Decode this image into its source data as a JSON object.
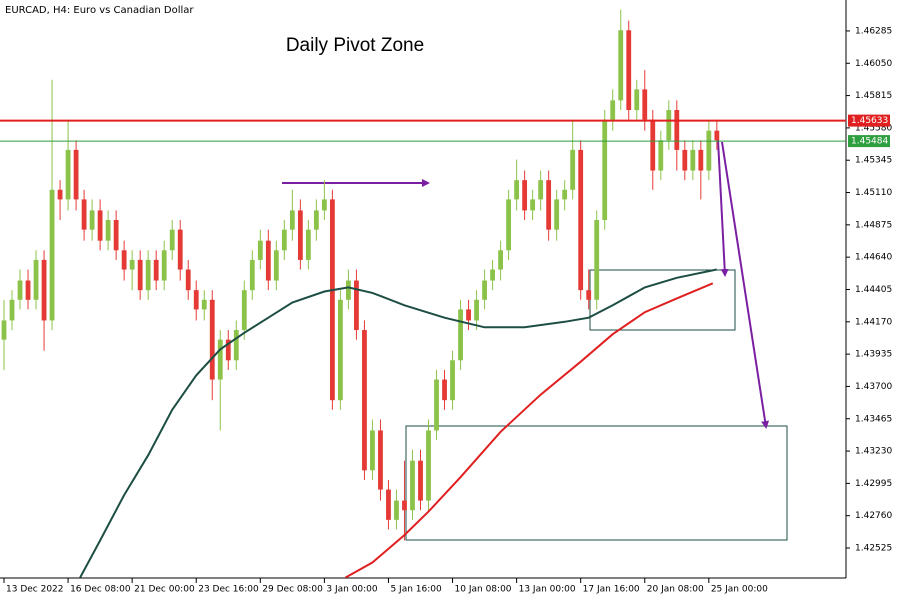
{
  "chart_data": {
    "type": "candlestick",
    "title": "EURCAD, H4:  Euro vs Canadian Dollar",
    "annotation": "Daily Pivot Zone",
    "categories": [
      "13 Dec 2022",
      null,
      null,
      null,
      null,
      null,
      null,
      null,
      "16 Dec 08:00",
      null,
      null,
      null,
      null,
      null,
      null,
      null,
      "21 Dec 00:00",
      null,
      null,
      null,
      null,
      null,
      null,
      null,
      "23 Dec 16:00",
      null,
      null,
      null,
      null,
      null,
      null,
      null,
      "29 Dec 08:00",
      null,
      null,
      null,
      null,
      null,
      null,
      null,
      "3 Jan 00:00",
      null,
      null,
      null,
      null,
      null,
      null,
      null,
      "5 Jan 16:00",
      null,
      null,
      null,
      null,
      null,
      null,
      null,
      "10 Jan 08:00",
      null,
      null,
      null,
      null,
      null,
      null,
      null,
      "13 Jan 00:00",
      null,
      null,
      null,
      null,
      null,
      null,
      null,
      "17 Jan 16:00",
      null,
      null,
      null,
      null,
      null,
      null,
      null,
      "20 Jan 08:00",
      null,
      null,
      null,
      null,
      null,
      null,
      null,
      "25 Jan 00:00",
      null
    ],
    "open": [
      1.4404,
      1.4418,
      1.4433,
      1.4447,
      1.4433,
      1.4462,
      1.4418,
      1.4513,
      1.4506,
      1.4542,
      1.4506,
      1.4484,
      1.4498,
      1.4476,
      1.4491,
      1.4469,
      1.4455,
      1.4462,
      1.444,
      1.4462,
      1.4447,
      1.4469,
      1.4484,
      1.4455,
      1.444,
      1.4426,
      1.4433,
      1.4375,
      1.4404,
      1.4389,
      1.4411,
      1.444,
      1.4462,
      1.4476,
      1.4447,
      1.4469,
      1.4484,
      1.4498,
      1.4462,
      1.4484,
      1.4498,
      1.4506,
      1.436,
      1.4433,
      1.4447,
      1.4411,
      1.4309,
      1.4338,
      1.4295,
      1.4273,
      1.4287,
      1.428,
      1.4316,
      1.4287,
      1.4338,
      1.4375,
      1.436,
      1.4389,
      1.4426,
      1.4418,
      1.4433,
      1.4447,
      1.4455,
      1.4469,
      1.4506,
      1.452,
      1.4498,
      1.4506,
      1.452,
      1.4484,
      1.4506,
      1.4513,
      1.4542,
      1.444,
      1.4433,
      1.4491,
      1.4564,
      1.4578,
      1.4629,
      1.4571,
      1.4586,
      1.4564,
      1.4527,
      1.4549,
      1.4571,
      1.4542,
      1.4527,
      1.4542,
      1.4527,
      1.4556
    ],
    "high": [
      1.4433,
      1.444,
      1.4455,
      1.4455,
      1.4469,
      1.4469,
      1.4593,
      1.452,
      1.4564,
      1.4549,
      1.4513,
      1.4506,
      1.4506,
      1.4498,
      1.4498,
      1.4476,
      1.4469,
      1.4469,
      1.4469,
      1.4469,
      1.4476,
      1.4491,
      1.4491,
      1.4462,
      1.4447,
      1.444,
      1.444,
      1.4411,
      1.4411,
      1.4418,
      1.4447,
      1.4469,
      1.4484,
      1.4484,
      1.4476,
      1.4491,
      1.4513,
      1.4506,
      1.4491,
      1.4506,
      1.452,
      1.4513,
      1.444,
      1.4455,
      1.4455,
      1.4418,
      1.4346,
      1.4346,
      1.4302,
      1.4295,
      1.4316,
      1.4324,
      1.4324,
      1.4346,
      1.4382,
      1.4382,
      1.4396,
      1.4433,
      1.4433,
      1.444,
      1.4455,
      1.4462,
      1.4476,
      1.4513,
      1.4535,
      1.4527,
      1.4513,
      1.4527,
      1.4527,
      1.4513,
      1.452,
      1.4564,
      1.4549,
      1.4455,
      1.4498,
      1.4571,
      1.4586,
      1.4644,
      1.4636,
      1.4593,
      1.46,
      1.4571,
      1.4556,
      1.4578,
      1.4578,
      1.4549,
      1.4549,
      1.4549,
      1.4564,
      1.4564
    ],
    "low": [
      1.4382,
      1.4411,
      1.4426,
      1.4426,
      1.4426,
      1.4396,
      1.4411,
      1.4491,
      1.4498,
      1.4498,
      1.4476,
      1.4476,
      1.4469,
      1.4469,
      1.4462,
      1.4447,
      1.444,
      1.4433,
      1.4433,
      1.444,
      1.444,
      1.4462,
      1.4447,
      1.4433,
      1.4418,
      1.4418,
      1.436,
      1.4338,
      1.4382,
      1.4382,
      1.4404,
      1.4433,
      1.4455,
      1.444,
      1.444,
      1.4462,
      1.4476,
      1.4455,
      1.4455,
      1.4476,
      1.4491,
      1.4353,
      1.4353,
      1.4426,
      1.4404,
      1.4302,
      1.4302,
      1.4287,
      1.4266,
      1.4266,
      1.4258,
      1.4273,
      1.428,
      1.428,
      1.4331,
      1.4353,
      1.4353,
      1.4382,
      1.4411,
      1.4411,
      1.4426,
      1.444,
      1.4447,
      1.4462,
      1.4498,
      1.4491,
      1.4491,
      1.4498,
      1.4476,
      1.4476,
      1.4498,
      1.4506,
      1.4433,
      1.4426,
      1.4426,
      1.4484,
      1.4556,
      1.4571,
      1.4564,
      1.4564,
      1.4556,
      1.4513,
      1.452,
      1.4542,
      1.4527,
      1.452,
      1.452,
      1.4506,
      1.452,
      1.4542
    ],
    "close": [
      1.4418,
      1.4433,
      1.4447,
      1.4433,
      1.4462,
      1.4418,
      1.4513,
      1.4506,
      1.4542,
      1.4506,
      1.4484,
      1.4498,
      1.4476,
      1.4491,
      1.4469,
      1.4455,
      1.4462,
      1.444,
      1.4462,
      1.4447,
      1.4469,
      1.4484,
      1.4455,
      1.444,
      1.4426,
      1.4433,
      1.4375,
      1.4404,
      1.4389,
      1.4411,
      1.444,
      1.4462,
      1.4476,
      1.4447,
      1.4469,
      1.4484,
      1.4498,
      1.4462,
      1.4484,
      1.4498,
      1.4506,
      1.436,
      1.4433,
      1.4447,
      1.4411,
      1.4309,
      1.4338,
      1.4295,
      1.4273,
      1.4287,
      1.428,
      1.4316,
      1.4287,
      1.4338,
      1.4375,
      1.436,
      1.4389,
      1.4426,
      1.4418,
      1.4433,
      1.4447,
      1.4455,
      1.4469,
      1.4506,
      1.452,
      1.4498,
      1.4506,
      1.452,
      1.4484,
      1.4506,
      1.4513,
      1.4542,
      1.444,
      1.4433,
      1.4491,
      1.4564,
      1.4578,
      1.4629,
      1.4571,
      1.4586,
      1.4564,
      1.4527,
      1.4549,
      1.4571,
      1.4542,
      1.4527,
      1.4542,
      1.4527,
      1.4556,
      1.4549
    ],
    "up_color": "#8bc34a",
    "down_color": "#e53935",
    "overlays": [
      {
        "color": "#1d4e44",
        "x": [
          9.5,
          12,
          15,
          18,
          21,
          24,
          27,
          30,
          33,
          36,
          40,
          43,
          46,
          50,
          55,
          60,
          65,
          70,
          73,
          76,
          80,
          84,
          89
        ],
        "values": [
          1.4231,
          1.4258,
          1.4291,
          1.432,
          1.4353,
          1.4378,
          1.4397,
          1.4409,
          1.442,
          1.4431,
          1.4439,
          1.4442,
          1.4438,
          1.4429,
          1.442,
          1.4413,
          1.4413,
          1.4417,
          1.442,
          1.4429,
          1.4442,
          1.4449,
          1.4455
        ]
      },
      {
        "color": "#e02020",
        "x": [
          42.625,
          46,
          50,
          53,
          57,
          62,
          67,
          72,
          76,
          80,
          84,
          88.5
        ],
        "values": [
          1.4231,
          1.4242,
          1.4262,
          1.4279,
          1.4304,
          1.4337,
          1.4364,
          1.4388,
          1.4408,
          1.4424,
          1.4434,
          1.4445
        ]
      }
    ],
    "hlines": [
      {
        "value": 1.45633,
        "color": "#e02020"
      },
      {
        "value": 1.45484,
        "color": "#2e9e3e"
      }
    ],
    "xlim": [
      -0.5,
      105.125
    ],
    "ylim": [
      1.42307,
      1.4651
    ],
    "yticks": [
      1.46285,
      {
        "value": 1.4605,
        "label": "1.46050"
      },
      1.45815,
      {
        "value": 1.4558,
        "label": "1.45580"
      },
      1.45345,
      {
        "value": 1.4511,
        "label": "1.45110"
      },
      1.44875,
      {
        "value": 1.4464,
        "label": "1.44640"
      },
      1.44405,
      {
        "value": 1.4417,
        "label": "1.44170"
      },
      1.43935,
      {
        "value": 1.437,
        "label": "1.43700"
      },
      1.43465,
      {
        "value": 1.4323,
        "label": "1.43230"
      },
      1.42995,
      {
        "value": 1.4276,
        "label": "1.42760"
      },
      1.42525
    ]
  }
}
